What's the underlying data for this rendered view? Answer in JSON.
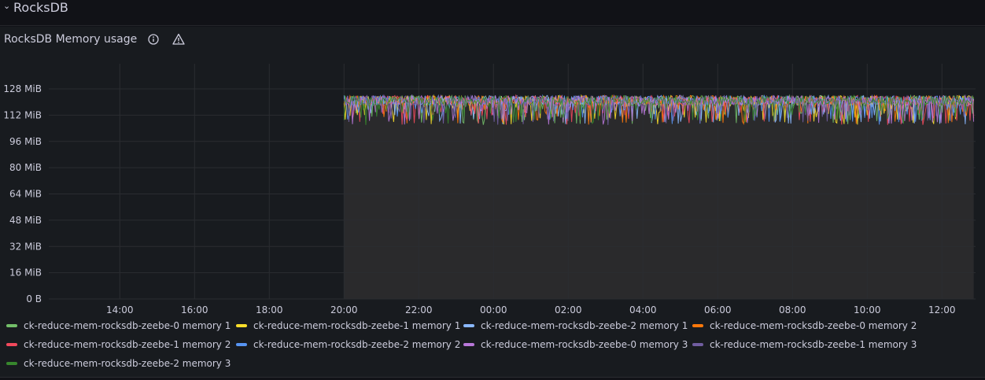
{
  "row": {
    "title": "RocksDB",
    "chevron": "⌄"
  },
  "panel": {
    "title": "RocksDB Memory usage",
    "icons": [
      "info-icon",
      "warning-icon"
    ]
  },
  "colors": {
    "background": "#111217",
    "panel": "#181b1f",
    "grid": "#2a2c31",
    "text": "#ccccdc",
    "fill": "#2a2a2c"
  },
  "chart_data": {
    "type": "line",
    "title": "RocksDB Memory usage",
    "xlabel": "",
    "ylabel": "",
    "y_ticks": [
      "0 B",
      "16 MiB",
      "32 MiB",
      "48 MiB",
      "64 MiB",
      "80 MiB",
      "96 MiB",
      "112 MiB",
      "128 MiB"
    ],
    "y_tick_values": [
      0,
      16,
      32,
      48,
      64,
      80,
      96,
      112,
      128
    ],
    "ylim": [
      0,
      128
    ],
    "x_ticks": [
      "14:00",
      "16:00",
      "18:00",
      "20:00",
      "22:00",
      "00:00",
      "02:00",
      "04:00",
      "06:00",
      "08:00",
      "10:00",
      "12:00"
    ],
    "x_tick_hours": [
      14,
      16,
      18,
      20,
      22,
      24,
      26,
      28,
      30,
      32,
      34,
      36
    ],
    "xlim_hours": [
      12.1,
      36.9
    ],
    "data_start_hour": 20,
    "data_end_hour": 36.85,
    "value_range_mib": [
      106,
      124
    ],
    "typical_mib": 118,
    "series": [
      {
        "name": "ck-reduce-mem-rocksdb-zeebe-0 memory 1",
        "color": "#73bf69"
      },
      {
        "name": "ck-reduce-mem-rocksdb-zeebe-1 memory 1",
        "color": "#fade2a"
      },
      {
        "name": "ck-reduce-mem-rocksdb-zeebe-2 memory 1",
        "color": "#8ab8ff"
      },
      {
        "name": "ck-reduce-mem-rocksdb-zeebe-0 memory 2",
        "color": "#ff780a"
      },
      {
        "name": "ck-reduce-mem-rocksdb-zeebe-1 memory 2",
        "color": "#f2495c"
      },
      {
        "name": "ck-reduce-mem-rocksdb-zeebe-2 memory 2",
        "color": "#5794f2"
      },
      {
        "name": "ck-reduce-mem-rocksdb-zeebe-0 memory 3",
        "color": "#b877d9"
      },
      {
        "name": "ck-reduce-mem-rocksdb-zeebe-1 memory 3",
        "color": "#705da0"
      },
      {
        "name": "ck-reduce-mem-rocksdb-zeebe-2 memory 3",
        "color": "#37872d"
      }
    ]
  }
}
